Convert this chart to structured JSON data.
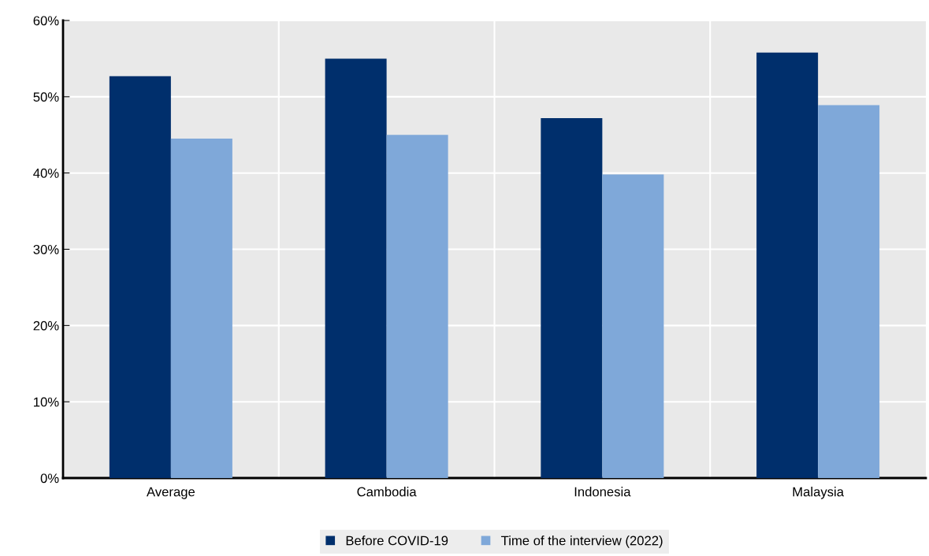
{
  "chart_data": {
    "type": "bar",
    "categories": [
      "Average",
      "Cambodia",
      "Indonesia",
      "Malaysia"
    ],
    "series": [
      {
        "name": "Before COVID-19",
        "color": "#002f6c",
        "values": [
          52.7,
          55.0,
          47.2,
          55.8
        ]
      },
      {
        "name": "Time of the interview (2022)",
        "color": "#7fa8d9",
        "values": [
          44.5,
          45.0,
          39.8,
          48.9
        ]
      }
    ],
    "ylim": [
      0,
      60
    ],
    "yticks": [
      {
        "value": 0,
        "label": "0%"
      },
      {
        "value": 10,
        "label": "10%"
      },
      {
        "value": 20,
        "label": "20%"
      },
      {
        "value": 30,
        "label": "30%"
      },
      {
        "value": 40,
        "label": "40%"
      },
      {
        "value": 50,
        "label": "50%"
      },
      {
        "value": 60,
        "label": "60%"
      }
    ],
    "grid": true,
    "legend": "bottom"
  }
}
